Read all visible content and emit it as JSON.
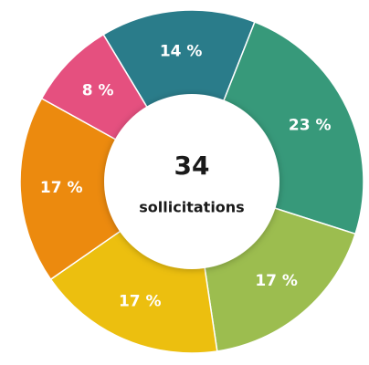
{
  "chart_data": {
    "type": "donut",
    "categories": [
      null,
      null,
      null,
      null,
      null,
      null
    ],
    "values": [
      14,
      23,
      17,
      17,
      17,
      8
    ],
    "value_labels": [
      "14 %",
      "23 %",
      "17 %",
      "17 %",
      "17 %",
      "8 %"
    ],
    "colors": [
      "#2a7c8a",
      "#37997a",
      "#9cbd4f",
      "#ecbf0f",
      "#ec8a0e",
      "#e5507f"
    ],
    "center_value": "34",
    "center_label": "sollicitations"
  }
}
